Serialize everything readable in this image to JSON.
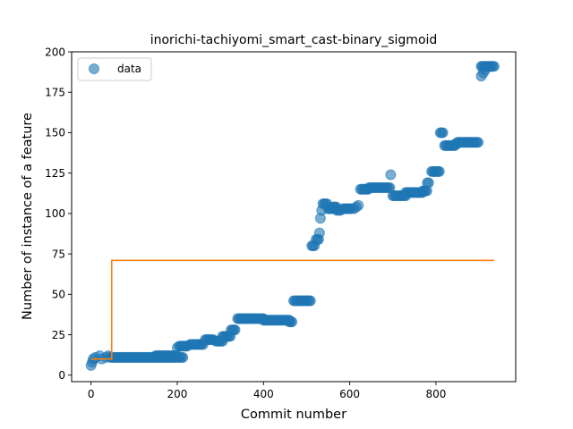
{
  "chart_data": {
    "type": "scatter",
    "title": "inorichi-tachiyomi_smart_cast-binary_sigmoid",
    "xlabel": "Commit number",
    "ylabel": "Number of instance of a feature",
    "xlim": [
      -45,
      985
    ],
    "ylim": [
      -4,
      200
    ],
    "xticks": [
      "0",
      "200",
      "400",
      "600",
      "800"
    ],
    "yticks": [
      "0",
      "25",
      "50",
      "75",
      "100",
      "125",
      "150",
      "175",
      "200"
    ],
    "grid": false,
    "legend": {
      "position": "top-left",
      "entries": [
        "data"
      ]
    },
    "colors": {
      "data": "#1f77b4",
      "fit": "#ff7f0e"
    },
    "series": [
      {
        "name": "data",
        "kind": "scatter",
        "segments": [
          [
            0,
            6,
            0
          ],
          [
            3,
            8,
            0
          ],
          [
            5,
            10,
            0
          ],
          [
            10,
            11,
            0
          ],
          [
            20,
            12,
            0
          ],
          [
            25,
            10,
            0
          ],
          [
            35,
            11,
            0
          ],
          [
            40,
            12,
            0
          ],
          [
            45,
            11,
            170
          ],
          [
            150,
            12,
            50
          ],
          [
            200,
            17,
            0
          ],
          [
            205,
            18,
            20
          ],
          [
            230,
            19,
            30
          ],
          [
            265,
            22,
            20
          ],
          [
            290,
            21,
            15
          ],
          [
            305,
            24,
            20
          ],
          [
            325,
            28,
            10
          ],
          [
            340,
            35,
            60
          ],
          [
            400,
            34,
            60
          ],
          [
            460,
            33,
            8
          ],
          [
            470,
            46,
            40
          ],
          [
            512,
            80,
            8
          ],
          [
            522,
            84,
            6
          ],
          [
            530,
            88,
            0
          ],
          [
            532,
            97,
            0
          ],
          [
            535,
            102,
            0
          ],
          [
            538,
            106,
            10
          ],
          [
            550,
            103,
            10
          ],
          [
            560,
            104,
            10
          ],
          [
            570,
            102,
            10
          ],
          [
            585,
            103,
            20
          ],
          [
            610,
            103,
            0
          ],
          [
            615,
            104,
            0
          ],
          [
            620,
            105,
            0
          ],
          [
            625,
            115,
            20
          ],
          [
            645,
            116,
            50
          ],
          [
            695,
            124,
            0
          ],
          [
            700,
            111,
            30
          ],
          [
            730,
            113,
            40
          ],
          [
            770,
            114,
            10
          ],
          [
            780,
            119,
            5
          ],
          [
            790,
            126,
            20
          ],
          [
            810,
            150,
            8
          ],
          [
            820,
            142,
            25
          ],
          [
            845,
            143,
            5
          ],
          [
            850,
            144,
            50
          ],
          [
            905,
            185,
            0
          ],
          [
            905,
            191,
            30
          ],
          [
            910,
            187,
            0
          ],
          [
            915,
            189,
            0
          ]
        ]
      },
      {
        "name": "fit",
        "kind": "step",
        "points": [
          [
            0,
            10
          ],
          [
            48,
            10
          ],
          [
            48,
            71
          ],
          [
            935,
            71
          ]
        ]
      }
    ]
  }
}
